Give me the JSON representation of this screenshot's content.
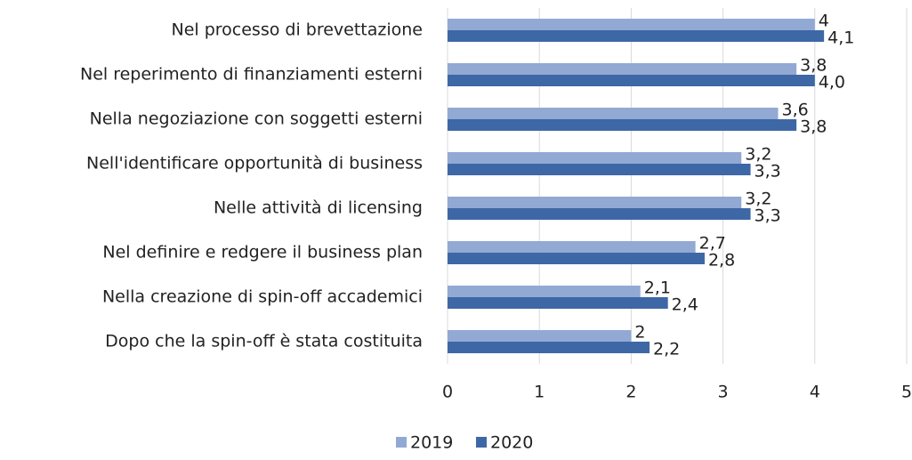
{
  "chart_data": {
    "type": "hbar",
    "categories": [
      "Nel processo di brevettazione",
      "Nel reperimento di finanziamenti esterni",
      "Nella negoziazione con soggetti esterni",
      "Nell'identificare opportunità di business",
      "Nelle attività di licensing",
      "Nel definire e redgere il business plan",
      "Nella creazione di spin-off accademici",
      "Dopo che la spin-off è stata costituita"
    ],
    "series": [
      {
        "name": "2019",
        "color": "#92a9d4",
        "values": [
          4,
          3.8,
          3.6,
          3.2,
          3.2,
          2.7,
          2.1,
          2
        ],
        "value_labels": [
          "4",
          "3,8",
          "3,6",
          "3,2",
          "3,2",
          "2,7",
          "2,1",
          "2"
        ]
      },
      {
        "name": "2020",
        "color": "#3e67a6",
        "values": [
          4.1,
          4.0,
          3.8,
          3.3,
          3.3,
          2.8,
          2.4,
          2.2
        ],
        "value_labels": [
          "4,1",
          "4,0",
          "3,8",
          "3,3",
          "3,3",
          "2,8",
          "2,4",
          "2,2"
        ]
      }
    ],
    "xlim": [
      0,
      5
    ],
    "xticks": [
      0,
      1,
      2,
      3,
      4,
      5
    ],
    "grid": true,
    "legend": "bottom"
  }
}
